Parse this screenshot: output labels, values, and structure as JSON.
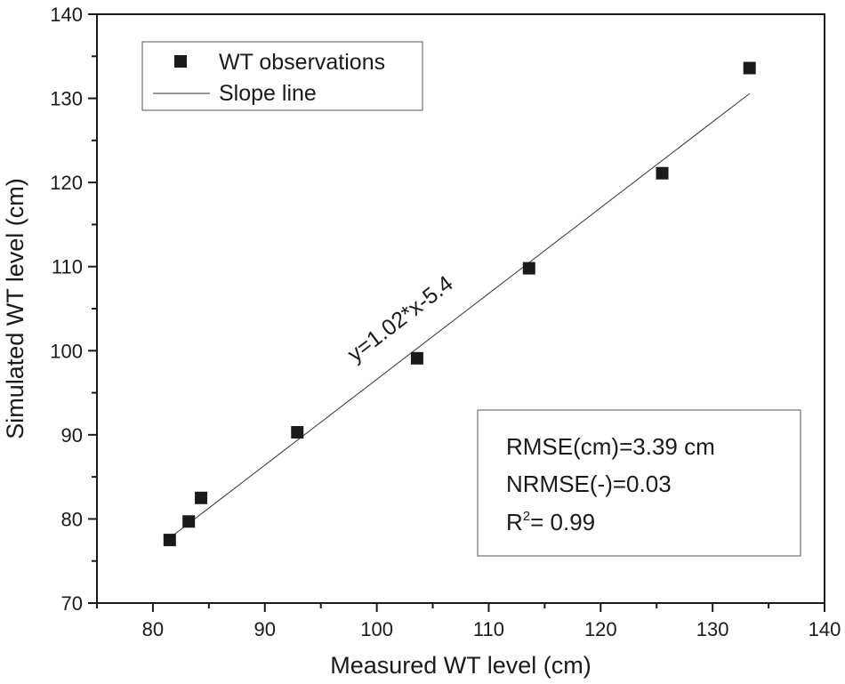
{
  "chart_data": {
    "type": "scatter",
    "title": "",
    "xlabel": "Measured WT level (cm)",
    "ylabel": "Simulated WT level (cm)",
    "xlim": [
      75,
      140
    ],
    "ylim": [
      70,
      140
    ],
    "xticks": [
      80,
      90,
      100,
      110,
      120,
      130,
      140
    ],
    "yticks": [
      70,
      80,
      90,
      100,
      110,
      120,
      130,
      140
    ],
    "grid": false,
    "legend_position": "top-left",
    "series": [
      {
        "name": "WT observations",
        "kind": "scatter",
        "marker": "square",
        "x": [
          81.5,
          83.2,
          84.3,
          92.9,
          103.6,
          113.6,
          125.5,
          133.3
        ],
        "y": [
          77.5,
          79.7,
          82.5,
          90.3,
          99.1,
          109.8,
          121.1,
          133.6
        ]
      },
      {
        "name": "Slope line",
        "kind": "line",
        "slope": 1.02,
        "intercept": -5.4,
        "x_range": [
          81.5,
          133.3
        ]
      }
    ],
    "annotations": {
      "equation": "y=1.02*x-5.4",
      "rmse": "RMSE(cm)=3.39 cm",
      "nrmse": "NRMSE(-)=0.03",
      "r2_prefix": "R",
      "r2_sup": "2",
      "r2_value": "= 0.99"
    }
  }
}
